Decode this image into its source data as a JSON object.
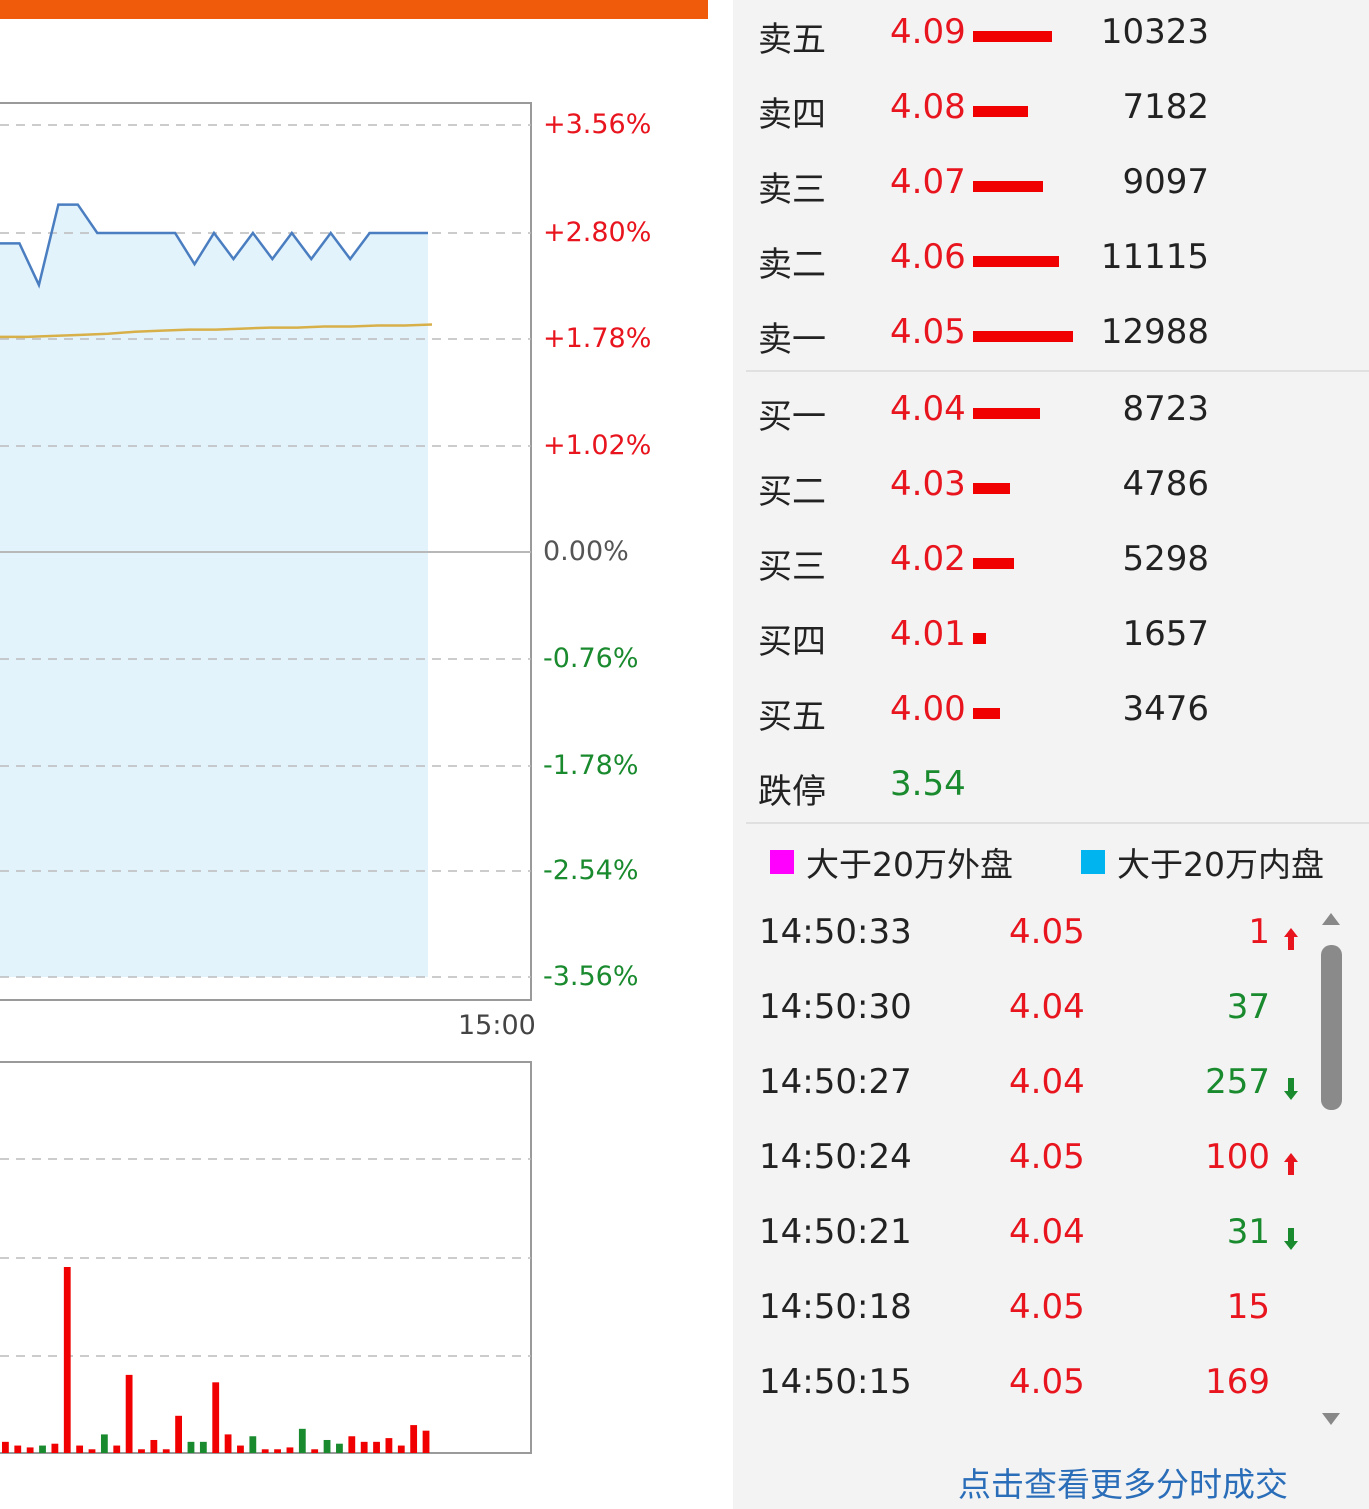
{
  "colors": {
    "up": "#E8141E",
    "down": "#1A8A2E",
    "accent": "#EF5A0B",
    "line": "#4A7EC0",
    "avg_line": "#D8B04A",
    "area": "#E3F3FC"
  },
  "chart_data": [
    {
      "type": "line",
      "title": "",
      "y_tick_labels": [
        "+3.56%",
        "+2.80%",
        "+1.78%",
        "+1.02%",
        "0.00%",
        "-0.76%",
        "-1.78%",
        "-2.54%",
        "-3.56%"
      ],
      "x_tick_labels": [
        "15:00"
      ],
      "grid": true,
      "series": [
        {
          "values_pct": [
            2.7,
            2.7,
            2.3,
            3.0,
            3.0,
            2.8,
            2.8,
            2.8,
            2.8,
            2.8,
            2.5,
            2.8,
            2.55,
            2.8,
            2.55,
            2.8,
            2.55,
            2.8,
            2.55,
            2.8,
            2.8,
            2.8,
            2.8
          ]
        },
        {
          "values_pct": [
            1.8,
            1.8,
            1.81,
            1.82,
            1.83,
            1.85,
            1.86,
            1.87,
            1.87,
            1.88,
            1.89,
            1.89,
            1.9,
            1.9,
            1.91,
            1.91,
            1.92
          ]
        }
      ]
    },
    {
      "type": "bar",
      "title": "",
      "grid": true,
      "bars": [
        {
          "v": 6,
          "c": "up"
        },
        {
          "v": 4,
          "c": "up"
        },
        {
          "v": 3,
          "c": "up"
        },
        {
          "v": 4,
          "c": "down"
        },
        {
          "v": 5,
          "c": "up"
        },
        {
          "v": 100,
          "c": "up"
        },
        {
          "v": 4,
          "c": "up"
        },
        {
          "v": 2,
          "c": "up"
        },
        {
          "v": 10,
          "c": "down"
        },
        {
          "v": 4,
          "c": "up"
        },
        {
          "v": 42,
          "c": "up"
        },
        {
          "v": 2,
          "c": "up"
        },
        {
          "v": 7,
          "c": "up"
        },
        {
          "v": 2,
          "c": "up"
        },
        {
          "v": 20,
          "c": "up"
        },
        {
          "v": 6,
          "c": "down"
        },
        {
          "v": 6,
          "c": "down"
        },
        {
          "v": 38,
          "c": "up"
        },
        {
          "v": 10,
          "c": "up"
        },
        {
          "v": 4,
          "c": "up"
        },
        {
          "v": 9,
          "c": "down"
        },
        {
          "v": 2,
          "c": "up"
        },
        {
          "v": 2,
          "c": "up"
        },
        {
          "v": 3,
          "c": "up"
        },
        {
          "v": 13,
          "c": "down"
        },
        {
          "v": 2,
          "c": "up"
        },
        {
          "v": 7,
          "c": "down"
        },
        {
          "v": 5,
          "c": "down"
        },
        {
          "v": 9,
          "c": "up"
        },
        {
          "v": 6,
          "c": "up"
        },
        {
          "v": 6,
          "c": "up"
        },
        {
          "v": 8,
          "c": "up"
        },
        {
          "v": 4,
          "c": "up"
        },
        {
          "v": 15,
          "c": "up"
        },
        {
          "v": 12,
          "c": "up"
        }
      ]
    }
  ],
  "order_book": {
    "asks": [
      {
        "label": "卖五",
        "price": "4.09",
        "vol": "10323",
        "vol_num": 10323
      },
      {
        "label": "卖四",
        "price": "4.08",
        "vol": "7182",
        "vol_num": 7182
      },
      {
        "label": "卖三",
        "price": "4.07",
        "vol": "9097",
        "vol_num": 9097
      },
      {
        "label": "卖二",
        "price": "4.06",
        "vol": "11115",
        "vol_num": 11115
      },
      {
        "label": "卖一",
        "price": "4.05",
        "vol": "12988",
        "vol_num": 12988
      }
    ],
    "bids": [
      {
        "label": "买一",
        "price": "4.04",
        "vol": "8723",
        "vol_num": 8723
      },
      {
        "label": "买二",
        "price": "4.03",
        "vol": "4786",
        "vol_num": 4786
      },
      {
        "label": "买三",
        "price": "4.02",
        "vol": "5298",
        "vol_num": 5298
      },
      {
        "label": "买四",
        "price": "4.01",
        "vol": "1657",
        "vol_num": 1657
      },
      {
        "label": "买五",
        "price": "4.00",
        "vol": "3476",
        "vol_num": 3476
      }
    ],
    "limit_down": {
      "label": "跌停",
      "price": "3.54"
    }
  },
  "legend": {
    "outer": {
      "label": "大于20万外盘",
      "color": "#FF00FF"
    },
    "inner": {
      "label": "大于20万内盘",
      "color": "#00B4F0"
    }
  },
  "trades": [
    {
      "time": "14:50:33",
      "price": "4.05",
      "vol": "1",
      "dir": "up",
      "arrow": "up"
    },
    {
      "time": "14:50:30",
      "price": "4.04",
      "vol": "37",
      "dir": "down",
      "arrow": ""
    },
    {
      "time": "14:50:27",
      "price": "4.04",
      "vol": "257",
      "dir": "down",
      "arrow": "down"
    },
    {
      "time": "14:50:24",
      "price": "4.05",
      "vol": "100",
      "dir": "up",
      "arrow": "up"
    },
    {
      "time": "14:50:21",
      "price": "4.04",
      "vol": "31",
      "dir": "down",
      "arrow": "down"
    },
    {
      "time": "14:50:18",
      "price": "4.05",
      "vol": "15",
      "dir": "up",
      "arrow": ""
    },
    {
      "time": "14:50:15",
      "price": "4.05",
      "vol": "169",
      "dir": "up",
      "arrow": ""
    }
  ],
  "more_link": "点击查看更多分时成交"
}
